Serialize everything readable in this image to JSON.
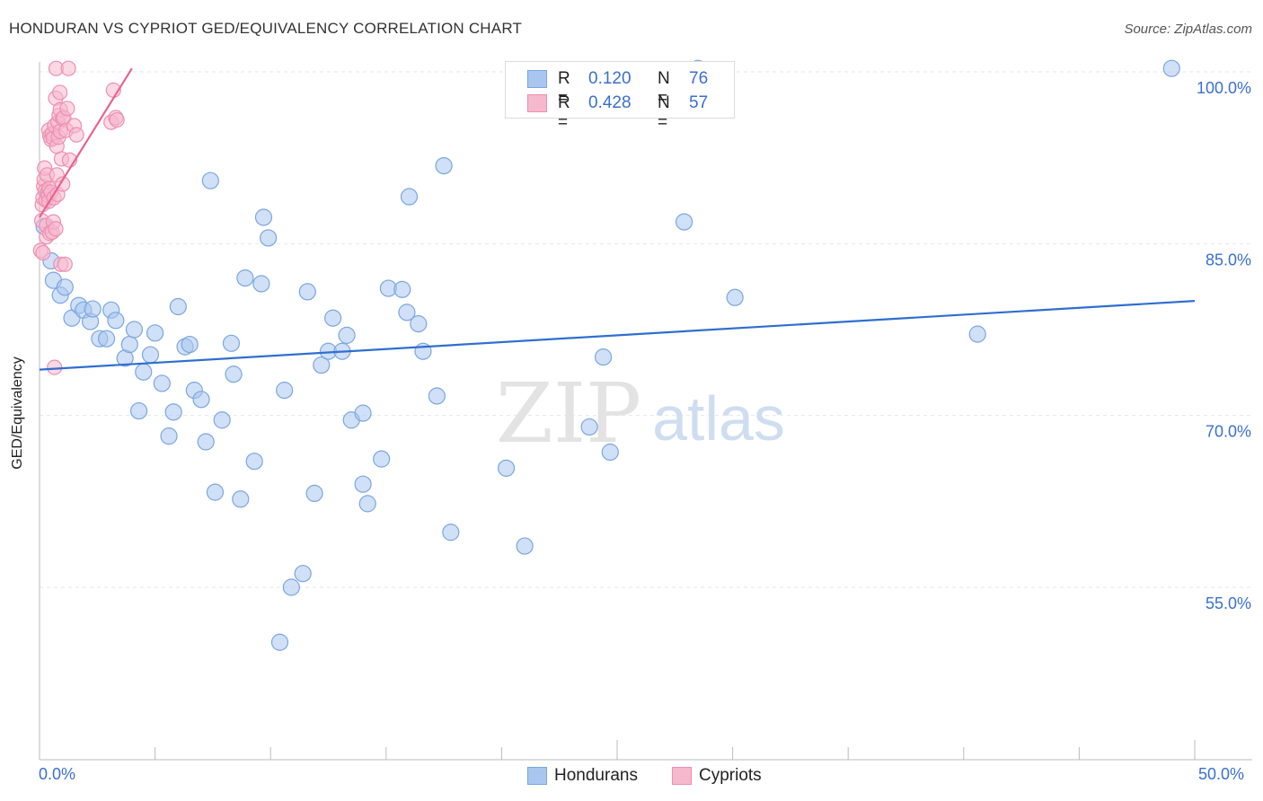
{
  "title": "HONDURAN VS CYPRIOT GED/EQUIVALENCY CORRELATION CHART",
  "source": "Source: ZipAtlas.com",
  "watermark": {
    "zip": "ZIP",
    "atlas": "atlas"
  },
  "legend": {
    "r_label": "R =",
    "n_label": "N =",
    "series": [
      {
        "name": "Hondurans",
        "r": "0.120",
        "n": "76"
      },
      {
        "name": "Cypriots",
        "r": "0.428",
        "n": "57"
      }
    ]
  },
  "x_axis": {
    "min_label": "0.0%",
    "max_label": "50.0%"
  },
  "colors": {
    "blue_fill": "#a9c6ee",
    "blue_stroke": "#7ba6e0",
    "blue_line": "#2f6fcf",
    "pink_fill": "#f6b8cd",
    "pink_stroke": "#ee8fb0",
    "pink_line": "#e8638f",
    "axis_text": "#3a6fd0",
    "grid": "#e6e6e6"
  },
  "chart_data": {
    "type": "scatter",
    "title": "HONDURAN VS CYPRIOT GED/EQUIVALENCY CORRELATION CHART",
    "xlabel": "",
    "ylabel": "GED/Equivalency",
    "xlim": [
      0,
      50
    ],
    "ylim": [
      40,
      102
    ],
    "y_ticks": [
      {
        "value": 55,
        "label": "55.0%"
      },
      {
        "value": 70,
        "label": "70.0%"
      },
      {
        "value": 85,
        "label": "85.0%"
      },
      {
        "value": 100,
        "label": "100.0%"
      }
    ],
    "x_ticks": [
      0,
      5,
      10,
      15,
      20,
      25,
      30,
      35,
      40,
      45,
      50
    ],
    "series": [
      {
        "name": "Hondurans",
        "color": "#a9c6ee",
        "trend": {
          "x": [
            0,
            50
          ],
          "y": [
            74.0,
            80.0
          ]
        },
        "points": [
          {
            "x": 0.2,
            "y": 86.5
          },
          {
            "x": 0.5,
            "y": 83.5
          },
          {
            "x": 0.6,
            "y": 81.8
          },
          {
            "x": 0.9,
            "y": 80.5
          },
          {
            "x": 1.1,
            "y": 81.2
          },
          {
            "x": 1.4,
            "y": 78.5
          },
          {
            "x": 1.7,
            "y": 79.6
          },
          {
            "x": 1.9,
            "y": 79.2
          },
          {
            "x": 2.2,
            "y": 78.2
          },
          {
            "x": 2.3,
            "y": 79.3
          },
          {
            "x": 2.6,
            "y": 76.7
          },
          {
            "x": 2.9,
            "y": 76.7
          },
          {
            "x": 3.1,
            "y": 79.2
          },
          {
            "x": 3.3,
            "y": 78.3
          },
          {
            "x": 3.7,
            "y": 75.0
          },
          {
            "x": 3.9,
            "y": 76.2
          },
          {
            "x": 4.1,
            "y": 77.5
          },
          {
            "x": 4.3,
            "y": 70.4
          },
          {
            "x": 4.5,
            "y": 73.8
          },
          {
            "x": 4.8,
            "y": 75.3
          },
          {
            "x": 5.0,
            "y": 77.2
          },
          {
            "x": 5.3,
            "y": 72.8
          },
          {
            "x": 5.6,
            "y": 68.2
          },
          {
            "x": 5.8,
            "y": 70.3
          },
          {
            "x": 6.0,
            "y": 79.5
          },
          {
            "x": 6.3,
            "y": 76.0
          },
          {
            "x": 6.5,
            "y": 76.2
          },
          {
            "x": 6.7,
            "y": 72.2
          },
          {
            "x": 7.0,
            "y": 71.4
          },
          {
            "x": 7.2,
            "y": 67.7
          },
          {
            "x": 7.4,
            "y": 90.5
          },
          {
            "x": 7.6,
            "y": 63.3
          },
          {
            "x": 7.9,
            "y": 69.6
          },
          {
            "x": 8.3,
            "y": 76.3
          },
          {
            "x": 8.4,
            "y": 73.6
          },
          {
            "x": 8.7,
            "y": 62.7
          },
          {
            "x": 8.9,
            "y": 82.0
          },
          {
            "x": 9.3,
            "y": 66.0
          },
          {
            "x": 9.6,
            "y": 81.5
          },
          {
            "x": 9.7,
            "y": 87.3
          },
          {
            "x": 9.9,
            "y": 85.5
          },
          {
            "x": 10.4,
            "y": 50.2
          },
          {
            "x": 10.6,
            "y": 72.2
          },
          {
            "x": 10.9,
            "y": 55.0
          },
          {
            "x": 11.4,
            "y": 56.2
          },
          {
            "x": 11.6,
            "y": 80.8
          },
          {
            "x": 11.9,
            "y": 63.2
          },
          {
            "x": 12.2,
            "y": 74.4
          },
          {
            "x": 12.5,
            "y": 75.6
          },
          {
            "x": 12.7,
            "y": 78.5
          },
          {
            "x": 13.1,
            "y": 75.6
          },
          {
            "x": 13.3,
            "y": 77.0
          },
          {
            "x": 13.5,
            "y": 69.6
          },
          {
            "x": 14.0,
            "y": 70.2
          },
          {
            "x": 14.0,
            "y": 64.0
          },
          {
            "x": 14.2,
            "y": 62.3
          },
          {
            "x": 14.8,
            "y": 66.2
          },
          {
            "x": 15.1,
            "y": 81.1
          },
          {
            "x": 15.7,
            "y": 81.0
          },
          {
            "x": 15.9,
            "y": 79.0
          },
          {
            "x": 16.0,
            "y": 89.1
          },
          {
            "x": 16.4,
            "y": 78.0
          },
          {
            "x": 16.6,
            "y": 75.6
          },
          {
            "x": 17.2,
            "y": 71.7
          },
          {
            "x": 17.5,
            "y": 91.8
          },
          {
            "x": 17.8,
            "y": 59.8
          },
          {
            "x": 20.2,
            "y": 65.4
          },
          {
            "x": 21.0,
            "y": 58.6
          },
          {
            "x": 23.8,
            "y": 69.0
          },
          {
            "x": 24.4,
            "y": 75.1
          },
          {
            "x": 24.7,
            "y": 66.8
          },
          {
            "x": 27.9,
            "y": 86.9
          },
          {
            "x": 28.5,
            "y": 100.3
          },
          {
            "x": 30.1,
            "y": 80.3
          },
          {
            "x": 40.6,
            "y": 77.1
          },
          {
            "x": 49.0,
            "y": 100.3
          }
        ]
      },
      {
        "name": "Cypriots",
        "color": "#f6b8cd",
        "trend": {
          "x": [
            0,
            4.0
          ],
          "y": [
            87.3,
            100.3
          ]
        },
        "points": [
          {
            "x": 0.05,
            "y": 84.4
          },
          {
            "x": 0.1,
            "y": 87.0
          },
          {
            "x": 0.12,
            "y": 88.4
          },
          {
            "x": 0.15,
            "y": 89.0
          },
          {
            "x": 0.18,
            "y": 90.0
          },
          {
            "x": 0.2,
            "y": 90.6
          },
          {
            "x": 0.22,
            "y": 91.6
          },
          {
            "x": 0.25,
            "y": 89.6
          },
          {
            "x": 0.28,
            "y": 88.8
          },
          {
            "x": 0.3,
            "y": 85.6
          },
          {
            "x": 0.3,
            "y": 86.6
          },
          {
            "x": 0.33,
            "y": 91.0
          },
          {
            "x": 0.35,
            "y": 89.5
          },
          {
            "x": 0.38,
            "y": 89.2
          },
          {
            "x": 0.4,
            "y": 88.7
          },
          {
            "x": 0.4,
            "y": 94.9
          },
          {
            "x": 0.42,
            "y": 89.8
          },
          {
            "x": 0.45,
            "y": 85.9
          },
          {
            "x": 0.45,
            "y": 94.4
          },
          {
            "x": 0.5,
            "y": 94.1
          },
          {
            "x": 0.5,
            "y": 89.5
          },
          {
            "x": 0.55,
            "y": 86.0
          },
          {
            "x": 0.55,
            "y": 94.6
          },
          {
            "x": 0.6,
            "y": 86.9
          },
          {
            "x": 0.6,
            "y": 94.2
          },
          {
            "x": 0.62,
            "y": 89.0
          },
          {
            "x": 0.65,
            "y": 95.3
          },
          {
            "x": 0.65,
            "y": 74.2
          },
          {
            "x": 0.7,
            "y": 86.3
          },
          {
            "x": 0.7,
            "y": 97.7
          },
          {
            "x": 0.72,
            "y": 100.3
          },
          {
            "x": 0.75,
            "y": 91.0
          },
          {
            "x": 0.75,
            "y": 93.5
          },
          {
            "x": 0.78,
            "y": 89.3
          },
          {
            "x": 0.8,
            "y": 95.6
          },
          {
            "x": 0.82,
            "y": 94.3
          },
          {
            "x": 0.85,
            "y": 96.2
          },
          {
            "x": 0.88,
            "y": 98.2
          },
          {
            "x": 0.9,
            "y": 94.8
          },
          {
            "x": 0.9,
            "y": 96.7
          },
          {
            "x": 0.92,
            "y": 83.2
          },
          {
            "x": 0.95,
            "y": 92.4
          },
          {
            "x": 1.0,
            "y": 95.9
          },
          {
            "x": 1.0,
            "y": 90.2
          },
          {
            "x": 1.05,
            "y": 96.0
          },
          {
            "x": 1.1,
            "y": 83.2
          },
          {
            "x": 1.15,
            "y": 94.9
          },
          {
            "x": 1.2,
            "y": 96.8
          },
          {
            "x": 1.25,
            "y": 100.3
          },
          {
            "x": 1.3,
            "y": 92.3
          },
          {
            "x": 1.5,
            "y": 95.3
          },
          {
            "x": 1.6,
            "y": 94.5
          },
          {
            "x": 3.1,
            "y": 95.6
          },
          {
            "x": 3.2,
            "y": 98.4
          },
          {
            "x": 3.3,
            "y": 96.0
          },
          {
            "x": 3.35,
            "y": 95.8
          },
          {
            "x": 0.15,
            "y": 84.2
          }
        ]
      }
    ]
  }
}
